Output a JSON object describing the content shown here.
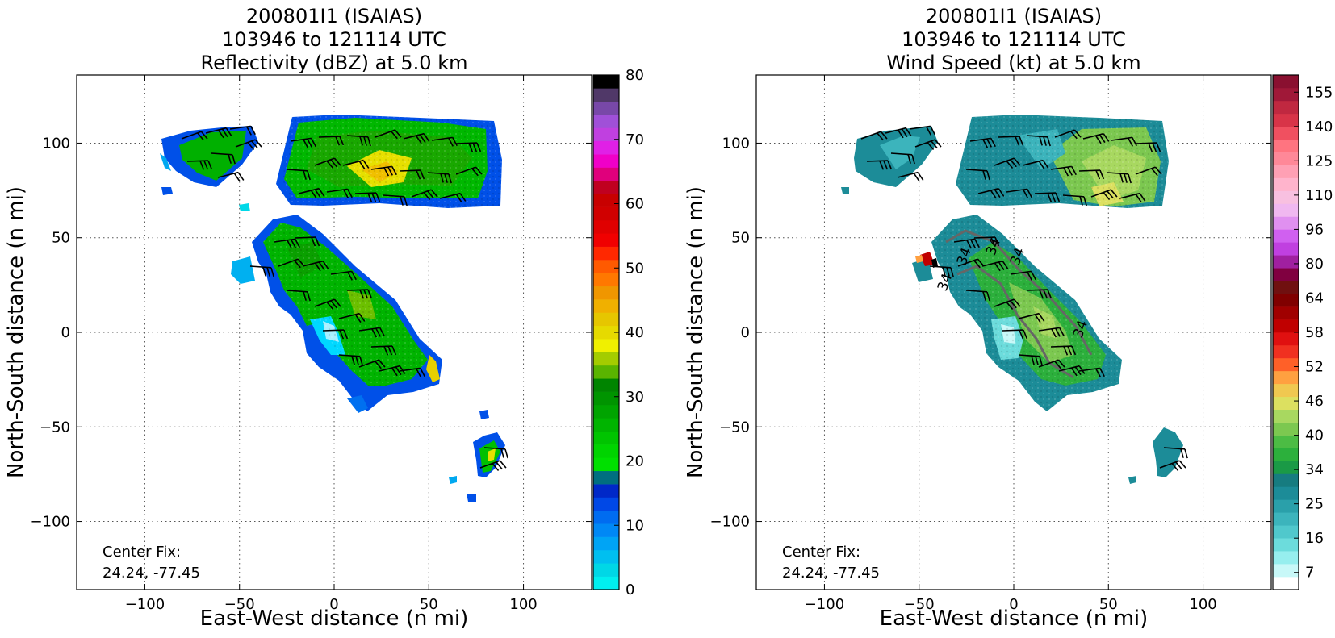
{
  "chart_data": [
    {
      "type": "heatmap",
      "title": [
        "200801I1 (ISAIAS)",
        "103946 to 121114 UTC",
        "Reflectivity (dBZ) at 5.0 km"
      ],
      "xlabel": "East-West distance (n mi)",
      "ylabel": "North-South distance (n mi)",
      "xlim": [
        -136,
        136
      ],
      "ylim": [
        -136,
        136
      ],
      "xticks": [
        -100,
        -50,
        0,
        50,
        100
      ],
      "yticks": [
        -100,
        -50,
        0,
        50,
        100
      ],
      "grid": true,
      "annotation": [
        "Center Fix:",
        "24.24, -77.45"
      ],
      "colorbar": {
        "min": 0,
        "max": 80,
        "ticks": [
          "0",
          "10",
          "20",
          "30",
          "40",
          "50",
          "60",
          "70",
          "80"
        ],
        "colors": [
          "#00efef",
          "#00d7e6",
          "#00bff0",
          "#00a4f5",
          "#0088f5",
          "#006cf0",
          "#0048e6",
          "#0028c8",
          "#006f80",
          "#00e000",
          "#00d400",
          "#00c400",
          "#00b400",
          "#00a400",
          "#009400",
          "#008400",
          "#5ab400",
          "#a4cc00",
          "#f0f000",
          "#e6da00",
          "#e6c600",
          "#f0b000",
          "#f09600",
          "#ff7800",
          "#ff5a00",
          "#ff2800",
          "#f00000",
          "#e00000",
          "#d00000",
          "#c80000",
          "#c00020",
          "#e0007c",
          "#f000c8",
          "#e020e6",
          "#c040e0",
          "#a050d8",
          "#7848a8",
          "#503868",
          "#000000"
        ]
      },
      "overlays": [
        "wind barbs (kt)"
      ],
      "echo_regions": [
        "northern rainband",
        "northwest cell",
        "central curved band",
        "southeast cell"
      ]
    },
    {
      "type": "heatmap",
      "title": [
        "200801I1 (ISAIAS)",
        "103946 to 121114 UTC",
        "Wind Speed (kt) at 5.0 km"
      ],
      "xlabel": "East-West distance (n mi)",
      "ylabel": "North-South distance (n mi)",
      "xlim": [
        -136,
        136
      ],
      "ylim": [
        -136,
        136
      ],
      "xticks": [
        -100,
        -50,
        0,
        50,
        100
      ],
      "yticks": [
        -100,
        -50,
        0,
        50,
        100
      ],
      "grid": true,
      "annotation": [
        "Center Fix:",
        "24.24, -77.45"
      ],
      "contour_labels": [
        "34",
        "34",
        "34",
        "34",
        "34"
      ],
      "colorbar": {
        "ticks": [
          "7",
          "16",
          "25",
          "34",
          "40",
          "46",
          "52",
          "58",
          "64",
          "80",
          "96",
          "110",
          "125",
          "140",
          "155"
        ],
        "colors": [
          "#ffffff",
          "#c8f8f8",
          "#96eeee",
          "#6cdcdc",
          "#50c8cc",
          "#3cb4bc",
          "#2aa0aa",
          "#1c8c98",
          "#167c80",
          "#1a9a46",
          "#2cb03c",
          "#4cbc44",
          "#7cc850",
          "#a8d860",
          "#dce060",
          "#f0c850",
          "#ffa040",
          "#ff6028",
          "#f03020",
          "#e01010",
          "#c00000",
          "#a00000",
          "#800000",
          "#701010",
          "#800040",
          "#a020a0",
          "#c040e0",
          "#d060f0",
          "#e090f0",
          "#f0b8f0",
          "#f8c0e0",
          "#ffb4cc",
          "#ffa0b4",
          "#ff8898",
          "#ff7480",
          "#f05060",
          "#d83448",
          "#c02840",
          "#a01838",
          "#8a1030"
        ]
      },
      "overlays": [
        "wind barbs (kt)"
      ],
      "wind_regions": [
        "northern rainband",
        "northwest cell",
        "central curved band",
        "southeast cell"
      ]
    }
  ]
}
